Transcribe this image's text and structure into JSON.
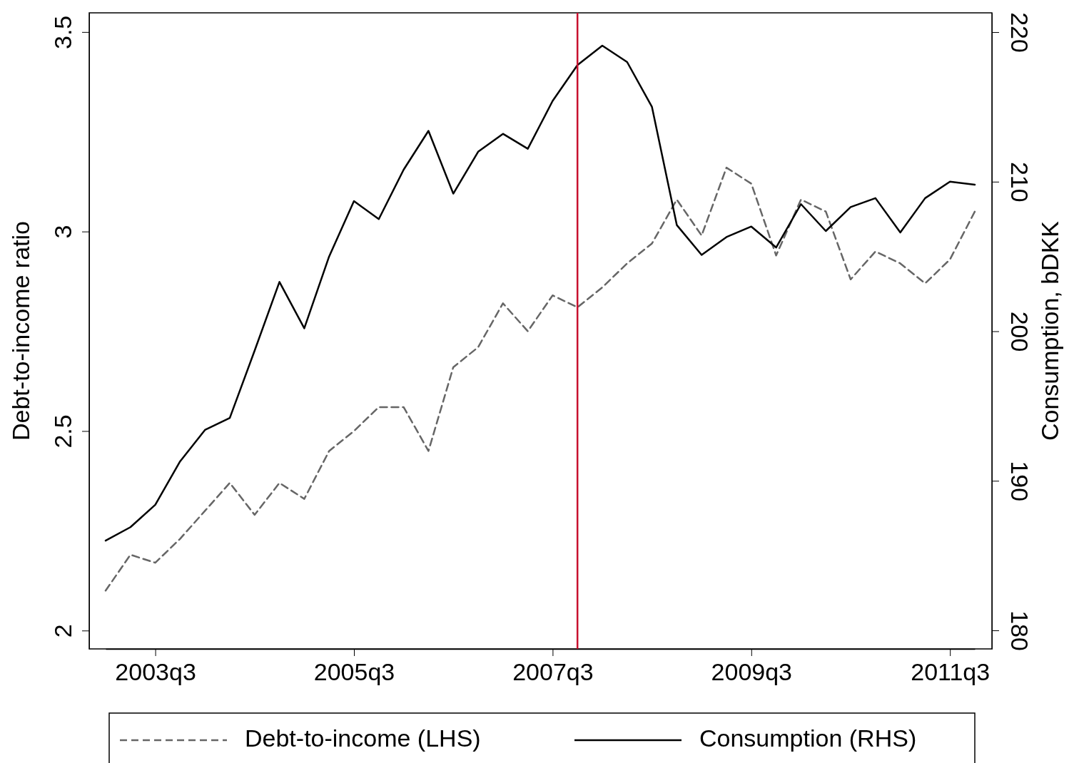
{
  "chart_data": {
    "type": "line",
    "ylabel": "Debt-to-income ratio",
    "y2label": "Consumption, bDKK",
    "categories": [
      null,
      null,
      "2003q3",
      null,
      null,
      null,
      null,
      null,
      null,
      null,
      "2005q3",
      null,
      null,
      null,
      null,
      null,
      null,
      null,
      "2007q3",
      null,
      null,
      null,
      null,
      null,
      null,
      null,
      "2009q3",
      null,
      null,
      null,
      null,
      null,
      null,
      null,
      "2011q3",
      null
    ],
    "series": [
      {
        "name": "Debt-to-income (LHS)",
        "color": "#666666",
        "line_style": "dashed",
        "values": [
          2.1,
          2.19,
          2.17,
          2.23,
          2.3,
          2.37,
          2.29,
          2.37,
          2.33,
          2.45,
          2.5,
          2.56,
          2.56,
          2.45,
          2.66,
          2.71,
          2.82,
          2.75,
          2.84,
          2.81,
          2.86,
          2.92,
          2.97,
          3.08,
          2.99,
          3.16,
          3.12,
          2.94,
          3.08,
          3.05,
          2.88,
          2.95,
          2.92,
          2.87,
          2.93,
          3.05
        ]
      },
      {
        "name": "Consumption (RHS)",
        "color": "#000000",
        "line_style": "solid",
        "axis": "y2",
        "values": [
          186.0,
          186.9,
          188.4,
          191.3,
          193.4,
          194.2,
          198.7,
          203.3,
          200.2,
          205.0,
          208.7,
          207.5,
          210.8,
          213.4,
          209.2,
          212.0,
          213.2,
          212.2,
          215.4,
          217.8,
          219.1,
          218.0,
          215.0,
          207.1,
          205.1,
          206.3,
          207.0,
          205.6,
          208.5,
          206.7,
          208.3,
          208.9,
          206.6,
          208.9,
          210.0,
          209.8
        ]
      }
    ],
    "ylim": [
      1.954,
      3.548
    ],
    "yticks": [
      2,
      2.5,
      3,
      3.5
    ],
    "y2lim": [
      178.76,
      221.29
    ],
    "y2ticks": [
      180,
      190,
      200,
      210,
      220
    ],
    "grid": false,
    "legend": "bottom"
  }
}
